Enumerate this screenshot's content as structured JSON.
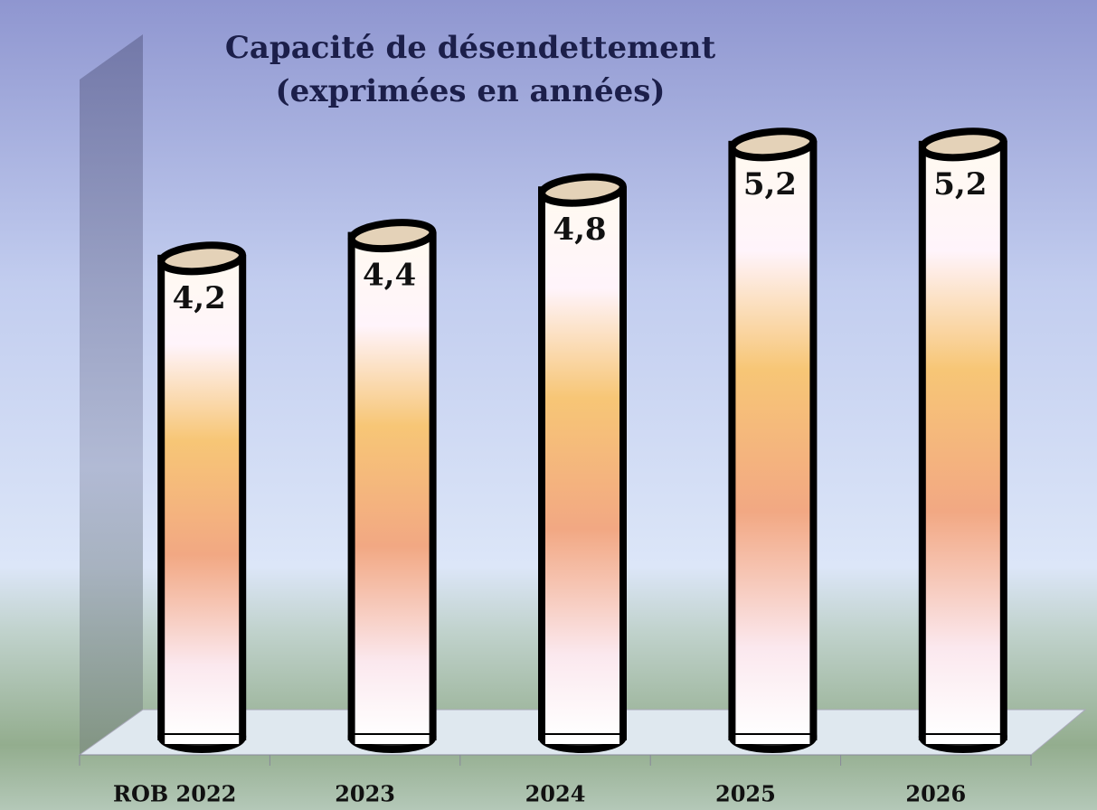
{
  "chart_data": {
    "type": "cylinder",
    "title": "Capacité de désendettement",
    "subtitle": "(exprimées en années)",
    "categories": [
      "ROB 2022",
      "2023",
      "2024",
      "2025",
      "2026"
    ],
    "values": [
      4.2,
      4.4,
      4.8,
      5.2,
      5.2
    ],
    "value_labels": [
      "4,2",
      "4,4",
      "4,8",
      "5,2",
      "5,2"
    ],
    "ylim": [
      0,
      6
    ]
  }
}
